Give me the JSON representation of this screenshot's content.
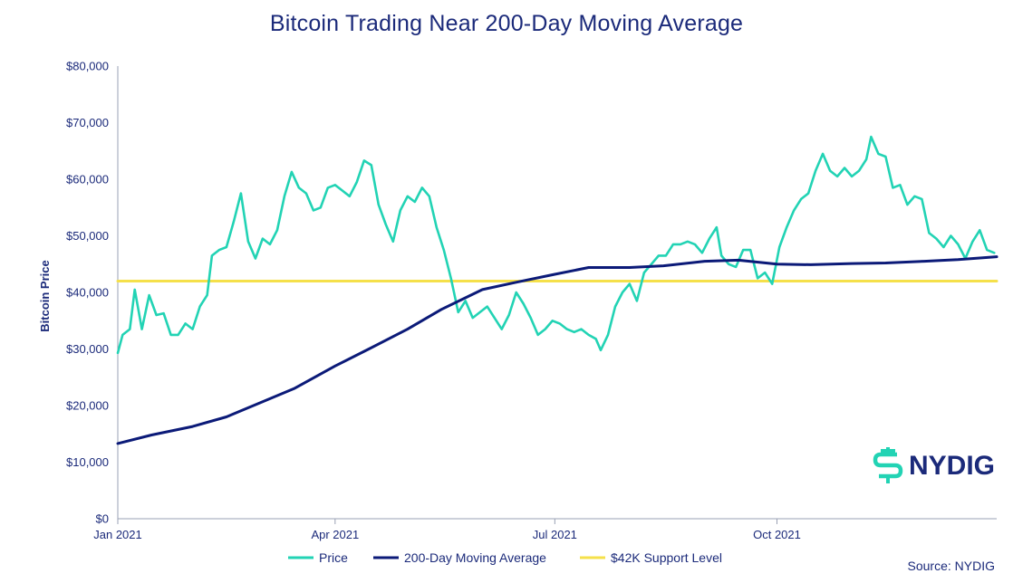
{
  "colors": {
    "price": "#22d3b4",
    "ma200": "#0b1a78",
    "support": "#f5e04a",
    "text": "#1b2a7a",
    "logo_mark": "#22d3b4"
  },
  "logo": {
    "text": "NYDIG",
    "icon": "dollar-brace-icon"
  },
  "source_text": "Source: NYDIG",
  "chart_data": {
    "type": "line",
    "title": "Bitcoin Trading Near 200-Day Moving Average",
    "ylabel": "Bitcoin Price",
    "xlabel": "",
    "ylim": [
      0,
      80000
    ],
    "xlim": [
      "2021-01-01",
      "2021-12-31"
    ],
    "y_ticks": [
      {
        "value": 0,
        "label": "$0"
      },
      {
        "value": 10000,
        "label": "$10,000"
      },
      {
        "value": 20000,
        "label": "$20,000"
      },
      {
        "value": 30000,
        "label": "$30,000"
      },
      {
        "value": 40000,
        "label": "$40,000"
      },
      {
        "value": 50000,
        "label": "$50,000"
      },
      {
        "value": 60000,
        "label": "$60,000"
      },
      {
        "value": 70000,
        "label": "$70,000"
      },
      {
        "value": 80000,
        "label": "$80,000"
      }
    ],
    "x_ticks": [
      {
        "value": "2021-01-01",
        "label": "Jan 2021"
      },
      {
        "value": "2021-04-01",
        "label": "Apr 2021"
      },
      {
        "value": "2021-07-01",
        "label": "Jul 2021"
      },
      {
        "value": "2021-10-01",
        "label": "Oct 2021"
      }
    ],
    "legend_position": "bottom",
    "grid": false,
    "series": [
      {
        "name": "Price",
        "x": [
          "2021-01-01",
          "2021-01-03",
          "2021-01-06",
          "2021-01-08",
          "2021-01-11",
          "2021-01-14",
          "2021-01-17",
          "2021-01-20",
          "2021-01-23",
          "2021-01-26",
          "2021-01-29",
          "2021-02-01",
          "2021-02-04",
          "2021-02-07",
          "2021-02-09",
          "2021-02-12",
          "2021-02-15",
          "2021-02-18",
          "2021-02-21",
          "2021-02-24",
          "2021-02-27",
          "2021-03-02",
          "2021-03-05",
          "2021-03-08",
          "2021-03-11",
          "2021-03-14",
          "2021-03-17",
          "2021-03-20",
          "2021-03-23",
          "2021-03-26",
          "2021-03-29",
          "2021-04-01",
          "2021-04-04",
          "2021-04-07",
          "2021-04-10",
          "2021-04-13",
          "2021-04-16",
          "2021-04-19",
          "2021-04-22",
          "2021-04-25",
          "2021-04-28",
          "2021-05-01",
          "2021-05-04",
          "2021-05-07",
          "2021-05-10",
          "2021-05-13",
          "2021-05-16",
          "2021-05-19",
          "2021-05-22",
          "2021-05-25",
          "2021-05-28",
          "2021-05-31",
          "2021-06-03",
          "2021-06-06",
          "2021-06-09",
          "2021-06-12",
          "2021-06-15",
          "2021-06-18",
          "2021-06-21",
          "2021-06-24",
          "2021-06-27",
          "2021-06-30",
          "2021-07-03",
          "2021-07-06",
          "2021-07-09",
          "2021-07-12",
          "2021-07-15",
          "2021-07-18",
          "2021-07-20",
          "2021-07-23",
          "2021-07-26",
          "2021-07-29",
          "2021-08-01",
          "2021-08-04",
          "2021-08-07",
          "2021-08-10",
          "2021-08-13",
          "2021-08-16",
          "2021-08-19",
          "2021-08-22",
          "2021-08-25",
          "2021-08-28",
          "2021-08-31",
          "2021-09-03",
          "2021-09-06",
          "2021-09-08",
          "2021-09-11",
          "2021-09-14",
          "2021-09-17",
          "2021-09-20",
          "2021-09-23",
          "2021-09-26",
          "2021-09-29",
          "2021-10-02",
          "2021-10-05",
          "2021-10-08",
          "2021-10-11",
          "2021-10-14",
          "2021-10-17",
          "2021-10-20",
          "2021-10-23",
          "2021-10-26",
          "2021-10-29",
          "2021-11-01",
          "2021-11-04",
          "2021-11-07",
          "2021-11-09",
          "2021-11-12",
          "2021-11-15",
          "2021-11-18",
          "2021-11-21",
          "2021-11-24",
          "2021-11-27",
          "2021-11-30",
          "2021-12-03",
          "2021-12-06",
          "2021-12-09",
          "2021-12-12",
          "2021-12-15",
          "2021-12-18",
          "2021-12-21",
          "2021-12-24",
          "2021-12-27",
          "2021-12-30"
        ],
        "values": [
          29300,
          32500,
          33500,
          40500,
          33500,
          39500,
          36000,
          36300,
          32500,
          32500,
          34500,
          33500,
          37500,
          39500,
          46500,
          47500,
          48000,
          52500,
          57500,
          49000,
          46000,
          49500,
          48500,
          51000,
          57000,
          61300,
          58500,
          57500,
          54500,
          55000,
          58500,
          59000,
          58000,
          57000,
          59500,
          63300,
          62500,
          55500,
          52000,
          49000,
          54500,
          57000,
          56000,
          58500,
          57000,
          51500,
          47500,
          42500,
          36500,
          38500,
          35500,
          36500,
          37500,
          35500,
          33500,
          36000,
          40000,
          38000,
          35500,
          32500,
          33500,
          35000,
          34500,
          33500,
          33000,
          33500,
          32500,
          31800,
          29800,
          32500,
          37500,
          40000,
          41500,
          38500,
          43500,
          45000,
          46500,
          46500,
          48500,
          48500,
          49000,
          48500,
          47000,
          49500,
          51500,
          46500,
          45000,
          44500,
          47500,
          47500,
          42500,
          43500,
          41500,
          48000,
          51500,
          54500,
          56500,
          57500,
          61500,
          64500,
          61500,
          60500,
          62000,
          60500,
          61500,
          63500,
          67500,
          64500,
          64000,
          58500,
          59000,
          55500,
          57000,
          56500,
          50500,
          49500,
          48000,
          50000,
          48500,
          46000,
          49000,
          51000,
          47500,
          47000
        ]
      },
      {
        "name": "200-Day Moving Average",
        "x": [
          "2021-01-01",
          "2021-01-15",
          "2021-02-01",
          "2021-02-15",
          "2021-03-01",
          "2021-03-15",
          "2021-04-01",
          "2021-04-15",
          "2021-05-01",
          "2021-05-15",
          "2021-06-01",
          "2021-06-15",
          "2021-07-01",
          "2021-07-15",
          "2021-08-01",
          "2021-08-15",
          "2021-09-01",
          "2021-09-15",
          "2021-10-01",
          "2021-10-15",
          "2021-11-01",
          "2021-11-15",
          "2021-12-01",
          "2021-12-15",
          "2021-12-31"
        ],
        "values": [
          13300,
          14800,
          16300,
          18000,
          20500,
          23000,
          27000,
          30000,
          33500,
          37000,
          40500,
          41800,
          43200,
          44400,
          44400,
          44700,
          45500,
          45700,
          45000,
          44900,
          45100,
          45200,
          45500,
          45800,
          46300
        ]
      },
      {
        "name": "$42K Support Level",
        "x": [
          "2021-01-01",
          "2021-12-31"
        ],
        "values": [
          42000,
          42000
        ]
      }
    ]
  }
}
